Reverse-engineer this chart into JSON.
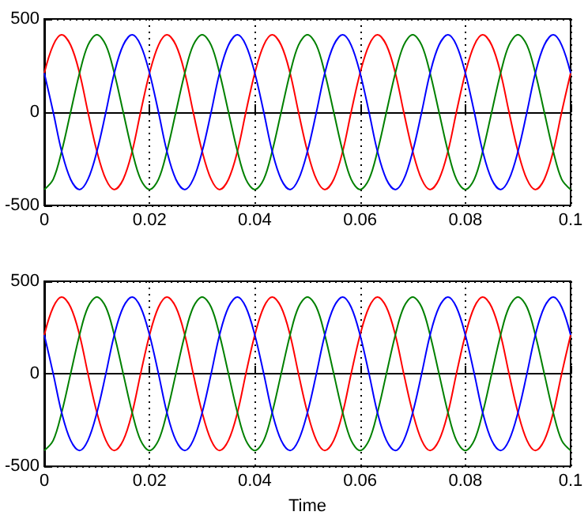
{
  "chart_data": [
    {
      "type": "line",
      "marker": "none",
      "grid": true,
      "xlim": [
        0,
        0.1
      ],
      "ylim": [
        -500,
        500
      ],
      "xticks": [
        0,
        0.02,
        0.04,
        0.06,
        0.08,
        0.1
      ],
      "yticks": [
        -500,
        0,
        500
      ],
      "x": [
        0,
        0.0017,
        0.0033,
        0.005,
        0.0067,
        0.0083,
        0.01,
        0.0117,
        0.0133,
        0.015,
        0.0167,
        0.0183,
        0.02,
        0.0217,
        0.0233,
        0.025,
        0.0267,
        0.0283,
        0.03,
        0.0317,
        0.0333,
        0.035,
        0.0367,
        0.0383,
        0.04,
        0.0417,
        0.0433,
        0.045,
        0.0467,
        0.0483,
        0.05,
        0.0517,
        0.0533,
        0.055,
        0.0567,
        0.0583,
        0.06,
        0.0617,
        0.0633,
        0.065,
        0.0667,
        0.0683,
        0.07,
        0.0717,
        0.0733,
        0.075,
        0.0767,
        0.0783,
        0.08,
        0.0817,
        0.0833,
        0.085,
        0.0867,
        0.0883,
        0.09,
        0.0917,
        0.0933,
        0.095,
        0.0967,
        0.0983,
        0.1
      ],
      "series": [
        {
          "color": "#ff0000",
          "values": [
            210,
            360,
            415,
            360,
            210,
            0,
            -210,
            -360,
            -415,
            -360,
            -210,
            0,
            210,
            360,
            415,
            360,
            210,
            0,
            -210,
            -360,
            -415,
            -360,
            -210,
            0,
            210,
            360,
            415,
            360,
            210,
            0,
            -210,
            -360,
            -415,
            -360,
            -210,
            0,
            210,
            360,
            415,
            360,
            210,
            0,
            -210,
            -360,
            -415,
            -360,
            -210,
            0,
            210,
            360,
            415,
            360,
            210,
            0,
            -210,
            -360,
            -415,
            -360,
            -210,
            0,
            210
          ]
        },
        {
          "color": "#008000",
          "values": [
            -415,
            -360,
            -210,
            0,
            210,
            360,
            415,
            360,
            210,
            0,
            -210,
            -360,
            -415,
            -360,
            -210,
            0,
            210,
            360,
            415,
            360,
            210,
            0,
            -210,
            -360,
            -415,
            -360,
            -210,
            0,
            210,
            360,
            415,
            360,
            210,
            0,
            -210,
            -360,
            -415,
            -360,
            -210,
            0,
            210,
            360,
            415,
            360,
            210,
            0,
            -210,
            -360,
            -415,
            -360,
            -210,
            0,
            210,
            360,
            415,
            360,
            210,
            0,
            -210,
            -360,
            -415
          ]
        },
        {
          "color": "#0000ff",
          "values": [
            210,
            0,
            -210,
            -360,
            -415,
            -360,
            -210,
            0,
            210,
            360,
            415,
            360,
            210,
            0,
            -210,
            -360,
            -415,
            -360,
            -210,
            0,
            210,
            360,
            415,
            360,
            210,
            0,
            -210,
            -360,
            -415,
            -360,
            -210,
            0,
            210,
            360,
            415,
            360,
            210,
            0,
            -210,
            -360,
            -415,
            -360,
            -210,
            0,
            210,
            360,
            415,
            360,
            210,
            0,
            -210,
            -360,
            -415,
            -360,
            -210,
            0,
            210,
            360,
            415,
            360,
            210
          ]
        }
      ]
    },
    {
      "type": "line",
      "marker": "none",
      "grid": true,
      "xlabel": "Time",
      "xlim": [
        0,
        0.1
      ],
      "ylim": [
        -500,
        500
      ],
      "xticks": [
        0,
        0.02,
        0.04,
        0.06,
        0.08,
        0.1
      ],
      "yticks": [
        -500,
        0,
        500
      ],
      "x": [
        0,
        0.0017,
        0.0033,
        0.005,
        0.0067,
        0.0083,
        0.01,
        0.0117,
        0.0133,
        0.015,
        0.0167,
        0.0183,
        0.02,
        0.0217,
        0.0233,
        0.025,
        0.0267,
        0.0283,
        0.03,
        0.0317,
        0.0333,
        0.035,
        0.0367,
        0.0383,
        0.04,
        0.0417,
        0.0433,
        0.045,
        0.0467,
        0.0483,
        0.05,
        0.0517,
        0.0533,
        0.055,
        0.0567,
        0.0583,
        0.06,
        0.0617,
        0.0633,
        0.065,
        0.0667,
        0.0683,
        0.07,
        0.0717,
        0.0733,
        0.075,
        0.0767,
        0.0783,
        0.08,
        0.0817,
        0.0833,
        0.085,
        0.0867,
        0.0883,
        0.09,
        0.0917,
        0.0933,
        0.095,
        0.0967,
        0.0983,
        0.1
      ],
      "series": [
        {
          "color": "#ff0000",
          "values": [
            210,
            360,
            415,
            360,
            210,
            0,
            -210,
            -360,
            -415,
            -360,
            -210,
            0,
            210,
            360,
            415,
            360,
            210,
            0,
            -210,
            -360,
            -415,
            -360,
            -210,
            0,
            210,
            360,
            415,
            360,
            210,
            0,
            -210,
            -360,
            -415,
            -360,
            -210,
            0,
            210,
            360,
            415,
            360,
            210,
            0,
            -210,
            -360,
            -415,
            -360,
            -210,
            0,
            210,
            360,
            415,
            360,
            210,
            0,
            -210,
            -360,
            -415,
            -360,
            -210,
            0,
            210
          ]
        },
        {
          "color": "#008000",
          "values": [
            -415,
            -360,
            -210,
            0,
            210,
            360,
            415,
            360,
            210,
            0,
            -210,
            -360,
            -415,
            -360,
            -210,
            0,
            210,
            360,
            415,
            360,
            210,
            0,
            -210,
            -360,
            -415,
            -360,
            -210,
            0,
            210,
            360,
            415,
            360,
            210,
            0,
            -210,
            -360,
            -415,
            -360,
            -210,
            0,
            210,
            360,
            415,
            360,
            210,
            0,
            -210,
            -360,
            -415,
            -360,
            -210,
            0,
            210,
            360,
            415,
            360,
            210,
            0,
            -210,
            -360,
            -415
          ]
        },
        {
          "color": "#0000ff",
          "values": [
            210,
            0,
            -210,
            -360,
            -415,
            -360,
            -210,
            0,
            210,
            360,
            415,
            360,
            210,
            0,
            -210,
            -360,
            -415,
            -360,
            -210,
            0,
            210,
            360,
            415,
            360,
            210,
            0,
            -210,
            -360,
            -415,
            -360,
            -210,
            0,
            210,
            360,
            415,
            360,
            210,
            0,
            -210,
            -360,
            -415,
            -360,
            -210,
            0,
            210,
            360,
            415,
            360,
            210,
            0,
            -210,
            -360,
            -415,
            -360,
            -210,
            0,
            210,
            360,
            415,
            360,
            210
          ]
        }
      ]
    }
  ]
}
